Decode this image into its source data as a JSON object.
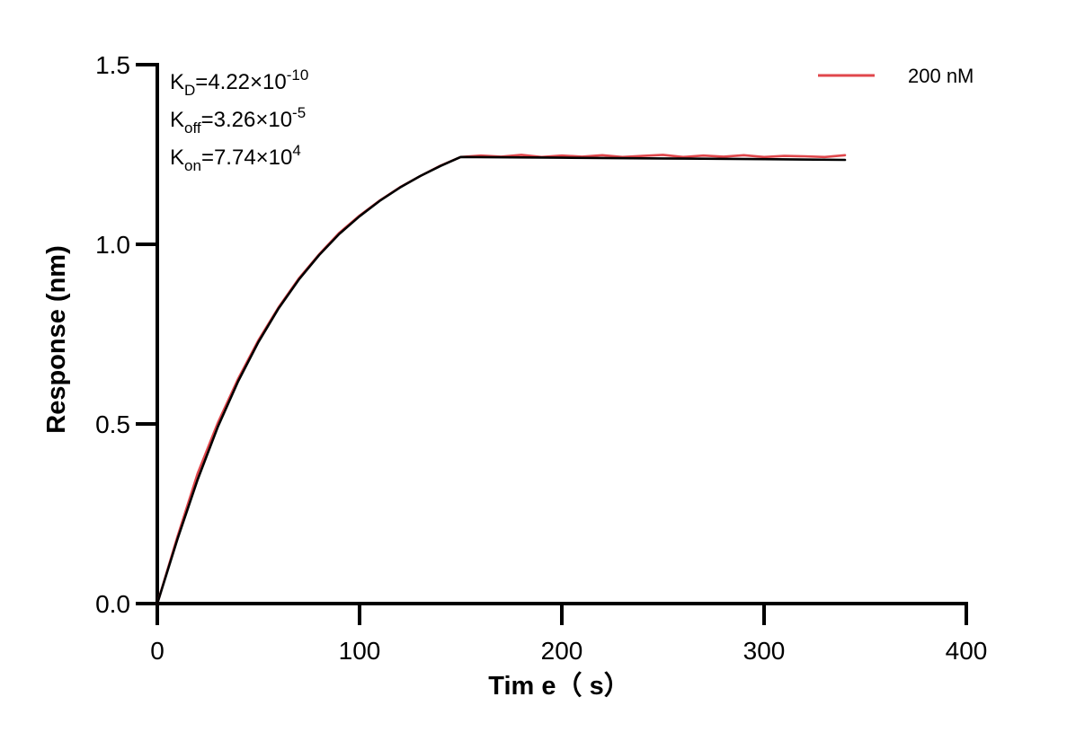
{
  "chart_data": {
    "type": "line",
    "title": "",
    "xlabel": "Tim e（ s）",
    "ylabel": "Response (nm)",
    "xlim": [
      0,
      400
    ],
    "ylim": [
      0,
      1.5
    ],
    "xticks": [
      0,
      100,
      200,
      300,
      400
    ],
    "yticks": [
      0,
      0.5,
      1.0,
      1.5
    ],
    "xtick_labels": [
      "0",
      "100",
      "200",
      "300",
      "400"
    ],
    "ytick_labels": [
      "0.0",
      "0.5",
      "1.0",
      "1.5"
    ],
    "grid": false,
    "legend_position": "top-right",
    "annotations": [
      {
        "base": "K",
        "sub": "D",
        "mid": "=4.22×10",
        "sup": "-10"
      },
      {
        "base": "K",
        "sub": "off",
        "mid": "=3.26×10",
        "sup": "-5"
      },
      {
        "base": "K",
        "sub": "on",
        "mid": "=7.74×10",
        "sup": "4"
      }
    ],
    "series": [
      {
        "name": "200 nM",
        "color": "#e0474c",
        "x": [
          0,
          10,
          20,
          30,
          40,
          50,
          60,
          70,
          80,
          90,
          100,
          110,
          120,
          130,
          140,
          150,
          160,
          170,
          180,
          190,
          200,
          210,
          220,
          230,
          240,
          250,
          260,
          270,
          280,
          290,
          300,
          310,
          320,
          330,
          340
        ],
        "y": [
          0.0,
          0.187,
          0.363,
          0.504,
          0.626,
          0.733,
          0.825,
          0.905,
          0.972,
          1.032,
          1.08,
          1.122,
          1.159,
          1.19,
          1.219,
          1.243,
          1.247,
          1.244,
          1.249,
          1.243,
          1.247,
          1.244,
          1.248,
          1.243,
          1.246,
          1.249,
          1.243,
          1.247,
          1.244,
          1.248,
          1.243,
          1.246,
          1.245,
          1.243,
          1.248
        ]
      },
      {
        "name": "",
        "color": "#000000",
        "x": [
          0,
          10,
          20,
          30,
          40,
          50,
          60,
          70,
          80,
          90,
          100,
          110,
          120,
          130,
          140,
          150,
          200,
          250,
          300,
          340
        ],
        "y": [
          0.0,
          0.18,
          0.346,
          0.493,
          0.619,
          0.728,
          0.822,
          0.902,
          0.97,
          1.029,
          1.078,
          1.121,
          1.158,
          1.19,
          1.218,
          1.243,
          1.241,
          1.239,
          1.237,
          1.235
        ]
      }
    ]
  }
}
